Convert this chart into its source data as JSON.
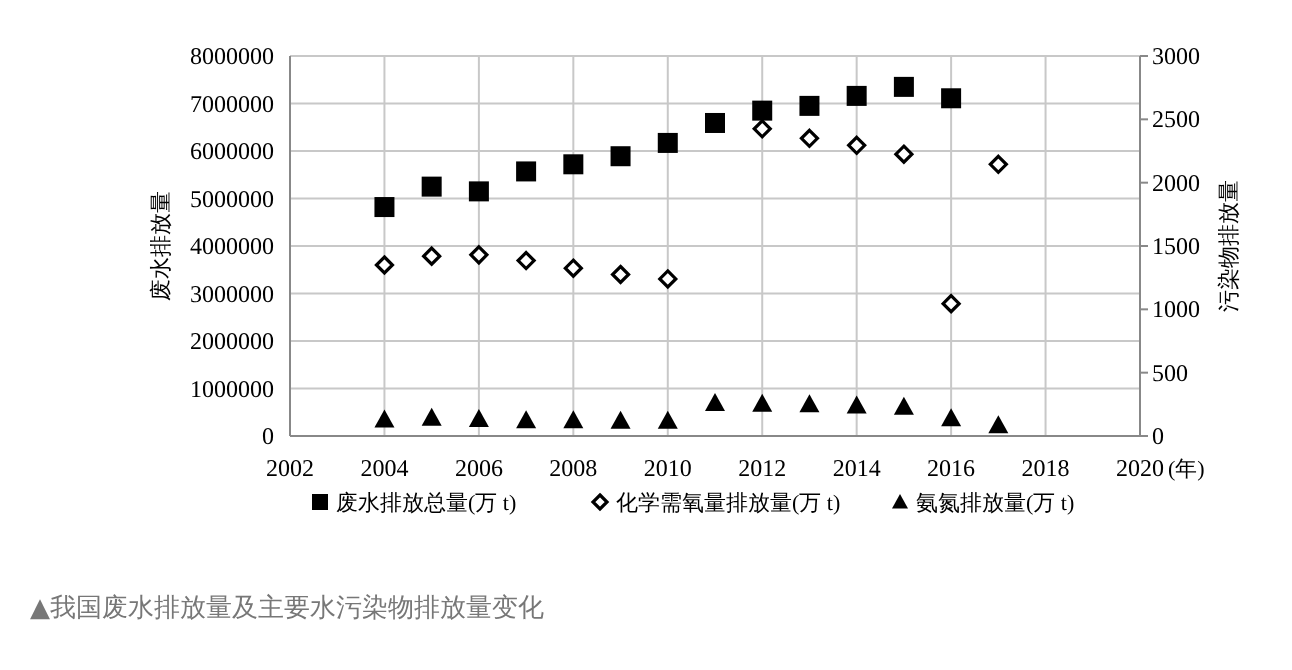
{
  "chart_data": {
    "type": "scatter",
    "ylabel": "废水排放量",
    "y2label": "污染物排放量",
    "xlabel": "(年)",
    "x": [
      2004,
      2005,
      2006,
      2007,
      2008,
      2009,
      2010,
      2011,
      2012,
      2013,
      2014,
      2015,
      2016,
      2017
    ],
    "xlim": [
      2002,
      2020
    ],
    "xticks": [
      2002,
      2004,
      2006,
      2008,
      2010,
      2012,
      2014,
      2016,
      2018,
      2020
    ],
    "ylim": [
      0,
      8000000
    ],
    "yticks": [
      0,
      1000000,
      2000000,
      3000000,
      4000000,
      5000000,
      6000000,
      7000000,
      8000000
    ],
    "y2lim": [
      0,
      3000
    ],
    "y2ticks": [
      0,
      500,
      1000,
      1500,
      2000,
      2500,
      3000
    ],
    "grid": true,
    "legend": "bottom",
    "series": [
      {
        "name": "废水排放总量(万 t)",
        "color": "#000000",
        "marker": "square",
        "values": [
          4820000,
          5250000,
          5150000,
          5570000,
          5720000,
          5890000,
          6170000,
          6590000,
          6850000,
          6950000,
          7160000,
          7350000,
          7110000,
          null
        ]
      },
      {
        "name": "化学需氧量排放量(万 t)",
        "color": "#000000",
        "marker": "diamond",
        "axis": "y2",
        "values": [
          1350,
          1420,
          1430,
          1385,
          1325,
          1275,
          1240,
          null,
          2425,
          2350,
          2295,
          2225,
          1045,
          2145
        ]
      },
      {
        "name": "氨氮排放量(万 t)",
        "color": "#000000",
        "marker": "triangle",
        "axis": "y2",
        "values": [
          130,
          145,
          135,
          125,
          125,
          120,
          120,
          260,
          255,
          250,
          240,
          230,
          140,
          85
        ]
      }
    ],
    "annotations": [
      "▲我国废水排放量及主要水污染物排放量变化"
    ]
  }
}
